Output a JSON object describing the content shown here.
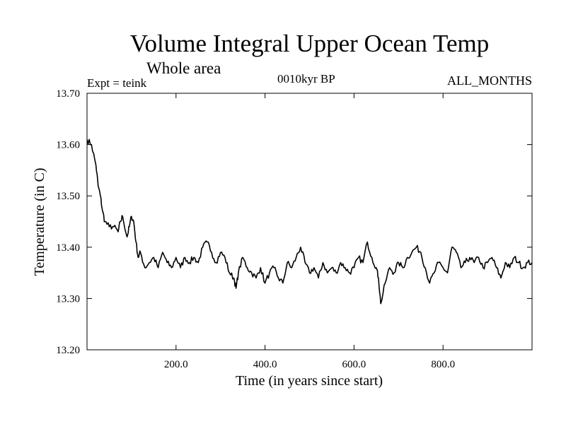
{
  "chart_data": {
    "type": "line",
    "title": "Volume Integral Upper Ocean Temp",
    "subtitle": "Whole area",
    "experiment": "Expt = teink",
    "period": "0010kyr BP",
    "months": "ALL_MONTHS",
    "xlabel": "Time (in years since start)",
    "ylabel": "Temperature (in C)",
    "xlim": [
      0,
      1000
    ],
    "ylim": [
      13.2,
      13.7
    ],
    "xticks": [
      200,
      400,
      600,
      800
    ],
    "xtick_labels": [
      "200.0",
      "400.0",
      "600.0",
      "800.0"
    ],
    "yticks": [
      13.2,
      13.3,
      13.4,
      13.5,
      13.6,
      13.7
    ],
    "ytick_labels": [
      "13.20",
      "13.30",
      "13.40",
      "13.50",
      "13.60",
      "13.70"
    ],
    "line_color": "#000000",
    "series": [
      {
        "name": "teink",
        "x": [
          0,
          10,
          20,
          25,
          30,
          35,
          40,
          50,
          60,
          70,
          75,
          80,
          90,
          95,
          100,
          105,
          110,
          115,
          120,
          130,
          140,
          150,
          160,
          170,
          180,
          190,
          200,
          210,
          220,
          230,
          240,
          250,
          260,
          270,
          280,
          290,
          300,
          310,
          320,
          330,
          335,
          340,
          350,
          360,
          370,
          380,
          390,
          400,
          410,
          420,
          430,
          440,
          450,
          460,
          470,
          480,
          490,
          500,
          510,
          520,
          530,
          540,
          550,
          560,
          570,
          580,
          590,
          600,
          610,
          620,
          630,
          640,
          650,
          655,
          660,
          670,
          680,
          690,
          700,
          710,
          720,
          730,
          740,
          750,
          760,
          770,
          780,
          790,
          800,
          810,
          820,
          830,
          840,
          850,
          860,
          870,
          880,
          890,
          900,
          910,
          920,
          930,
          940,
          950,
          960,
          970,
          980,
          990,
          1000
        ],
        "values": [
          13.61,
          13.6,
          13.56,
          13.52,
          13.5,
          13.47,
          13.45,
          13.44,
          13.44,
          13.43,
          13.45,
          13.46,
          13.42,
          13.44,
          13.46,
          13.45,
          13.41,
          13.38,
          13.39,
          13.36,
          13.37,
          13.38,
          13.36,
          13.39,
          13.37,
          13.36,
          13.38,
          13.36,
          13.38,
          13.37,
          13.38,
          13.37,
          13.4,
          13.41,
          13.39,
          13.37,
          13.39,
          13.38,
          13.35,
          13.34,
          13.32,
          13.35,
          13.38,
          13.36,
          13.35,
          13.34,
          13.36,
          13.33,
          13.35,
          13.36,
          13.34,
          13.33,
          13.37,
          13.36,
          13.38,
          13.4,
          13.37,
          13.35,
          13.36,
          13.34,
          13.37,
          13.35,
          13.36,
          13.35,
          13.37,
          13.36,
          13.35,
          13.36,
          13.38,
          13.37,
          13.41,
          13.38,
          13.36,
          13.34,
          13.29,
          13.33,
          13.36,
          13.35,
          13.37,
          13.36,
          13.38,
          13.39,
          13.4,
          13.39,
          13.36,
          13.33,
          13.35,
          13.37,
          13.36,
          13.35,
          13.4,
          13.39,
          13.36,
          13.37,
          13.38,
          13.37,
          13.38,
          13.36,
          13.37,
          13.38,
          13.36,
          13.34,
          13.37,
          13.36,
          13.38,
          13.37,
          13.36,
          13.37,
          13.37
        ]
      }
    ]
  }
}
